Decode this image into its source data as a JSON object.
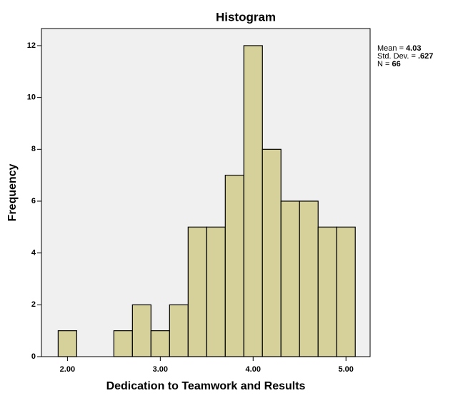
{
  "chart_data": {
    "type": "histogram",
    "title": "Histogram",
    "x_label": "Dedication to Teamwork and Results",
    "y_label": "Frequency",
    "bins": [
      1.9,
      2.1,
      2.3,
      2.5,
      2.7,
      2.9,
      3.1,
      3.3,
      3.5,
      3.7,
      3.9,
      4.1,
      4.3,
      4.5,
      4.7,
      4.9,
      5.1
    ],
    "values": [
      1,
      0,
      0,
      1,
      2,
      1,
      2,
      5,
      5,
      7,
      12,
      8,
      6,
      6,
      5,
      5
    ],
    "color": "#d6d19b",
    "background": "#f0f0f0",
    "xlim": [
      1.72,
      5.26
    ],
    "ylim": [
      0,
      12.66
    ],
    "xticks": [
      {
        "value": 2,
        "label": "2.00"
      },
      {
        "value": 3,
        "label": "3.00"
      },
      {
        "value": 4,
        "label": "4.00"
      },
      {
        "value": 5,
        "label": "5.00"
      }
    ],
    "yticks": [
      0,
      2,
      4,
      6,
      8,
      10,
      12
    ],
    "stats": [
      {
        "label": "Mean =",
        "value": "4.03"
      },
      {
        "label": "Std. Dev. =",
        "value": ".627"
      },
      {
        "label": "N =",
        "value": "66"
      }
    ]
  }
}
